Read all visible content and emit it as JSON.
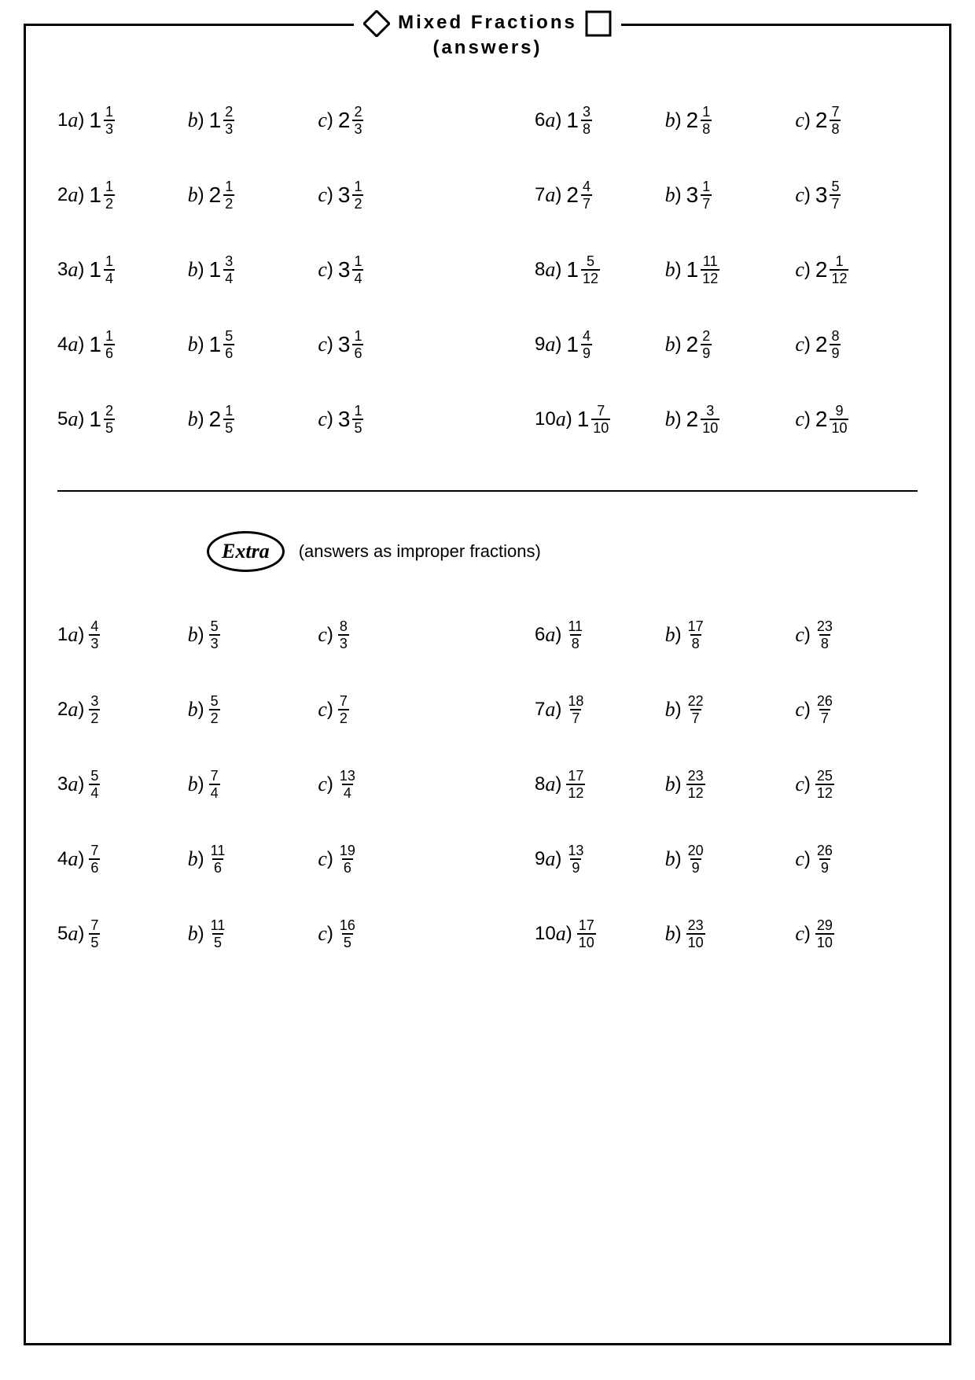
{
  "title_line1": "Mixed Fractions",
  "title_line2": "(answers)",
  "extra_label": "Extra",
  "extra_sub": "(answers as improper fractions)",
  "mixed": [
    [
      {
        "n": "1",
        "l": "a",
        "w": "1",
        "num": "1",
        "den": "3"
      },
      {
        "l": "b",
        "w": "1",
        "num": "2",
        "den": "3"
      },
      {
        "l": "c",
        "w": "2",
        "num": "2",
        "den": "3"
      }
    ],
    [
      {
        "n": "6",
        "l": "a",
        "w": "1",
        "num": "3",
        "den": "8"
      },
      {
        "l": "b",
        "w": "2",
        "num": "1",
        "den": "8"
      },
      {
        "l": "c",
        "w": "2",
        "num": "7",
        "den": "8"
      }
    ],
    [
      {
        "n": "2",
        "l": "a",
        "w": "1",
        "num": "1",
        "den": "2"
      },
      {
        "l": "b",
        "w": "2",
        "num": "1",
        "den": "2"
      },
      {
        "l": "c",
        "w": "3",
        "num": "1",
        "den": "2"
      }
    ],
    [
      {
        "n": "7",
        "l": "a",
        "w": "2",
        "num": "4",
        "den": "7"
      },
      {
        "l": "b",
        "w": "3",
        "num": "1",
        "den": "7"
      },
      {
        "l": "c",
        "w": "3",
        "num": "5",
        "den": "7"
      }
    ],
    [
      {
        "n": "3",
        "l": "a",
        "w": "1",
        "num": "1",
        "den": "4"
      },
      {
        "l": "b",
        "w": "1",
        "num": "3",
        "den": "4"
      },
      {
        "l": "c",
        "w": "3",
        "num": "1",
        "den": "4"
      }
    ],
    [
      {
        "n": "8",
        "l": "a",
        "w": "1",
        "num": "5",
        "den": "12"
      },
      {
        "l": "b",
        "w": "1",
        "num": "11",
        "den": "12"
      },
      {
        "l": "c",
        "w": "2",
        "num": "1",
        "den": "12"
      }
    ],
    [
      {
        "n": "4",
        "l": "a",
        "w": "1",
        "num": "1",
        "den": "6"
      },
      {
        "l": "b",
        "w": "1",
        "num": "5",
        "den": "6"
      },
      {
        "l": "c",
        "w": "3",
        "num": "1",
        "den": "6"
      }
    ],
    [
      {
        "n": "9",
        "l": "a",
        "w": "1",
        "num": "4",
        "den": "9"
      },
      {
        "l": "b",
        "w": "2",
        "num": "2",
        "den": "9"
      },
      {
        "l": "c",
        "w": "2",
        "num": "8",
        "den": "9"
      }
    ],
    [
      {
        "n": "5",
        "l": "a",
        "w": "1",
        "num": "2",
        "den": "5"
      },
      {
        "l": "b",
        "w": "2",
        "num": "1",
        "den": "5"
      },
      {
        "l": "c",
        "w": "3",
        "num": "1",
        "den": "5"
      }
    ],
    [
      {
        "n": "10",
        "l": "a",
        "w": "1",
        "num": "7",
        "den": "10"
      },
      {
        "l": "b",
        "w": "2",
        "num": "3",
        "den": "10"
      },
      {
        "l": "c",
        "w": "2",
        "num": "9",
        "den": "10"
      }
    ]
  ],
  "improper": [
    [
      {
        "n": "1",
        "l": "a",
        "num": "4",
        "den": "3"
      },
      {
        "l": "b",
        "num": "5",
        "den": "3"
      },
      {
        "l": "c",
        "num": "8",
        "den": "3"
      }
    ],
    [
      {
        "n": "6",
        "l": "a",
        "num": "11",
        "den": "8"
      },
      {
        "l": "b",
        "num": "17",
        "den": "8"
      },
      {
        "l": "c",
        "num": "23",
        "den": "8"
      }
    ],
    [
      {
        "n": "2",
        "l": "a",
        "num": "3",
        "den": "2"
      },
      {
        "l": "b",
        "num": "5",
        "den": "2"
      },
      {
        "l": "c",
        "num": "7",
        "den": "2"
      }
    ],
    [
      {
        "n": "7",
        "l": "a",
        "num": "18",
        "den": "7"
      },
      {
        "l": "b",
        "num": "22",
        "den": "7"
      },
      {
        "l": "c",
        "num": "26",
        "den": "7"
      }
    ],
    [
      {
        "n": "3",
        "l": "a",
        "num": "5",
        "den": "4"
      },
      {
        "l": "b",
        "num": "7",
        "den": "4"
      },
      {
        "l": "c",
        "num": "13",
        "den": "4"
      }
    ],
    [
      {
        "n": "8",
        "l": "a",
        "num": "17",
        "den": "12"
      },
      {
        "l": "b",
        "num": "23",
        "den": "12"
      },
      {
        "l": "c",
        "num": "25",
        "den": "12"
      }
    ],
    [
      {
        "n": "4",
        "l": "a",
        "num": "7",
        "den": "6"
      },
      {
        "l": "b",
        "num": "11",
        "den": "6"
      },
      {
        "l": "c",
        "num": "19",
        "den": "6"
      }
    ],
    [
      {
        "n": "9",
        "l": "a",
        "num": "13",
        "den": "9"
      },
      {
        "l": "b",
        "num": "20",
        "den": "9"
      },
      {
        "l": "c",
        "num": "26",
        "den": "9"
      }
    ],
    [
      {
        "n": "5",
        "l": "a",
        "num": "7",
        "den": "5"
      },
      {
        "l": "b",
        "num": "11",
        "den": "5"
      },
      {
        "l": "c",
        "num": "16",
        "den": "5"
      }
    ],
    [
      {
        "n": "10",
        "l": "a",
        "num": "17",
        "den": "10"
      },
      {
        "l": "b",
        "num": "23",
        "den": "10"
      },
      {
        "l": "c",
        "num": "29",
        "den": "10"
      }
    ]
  ]
}
